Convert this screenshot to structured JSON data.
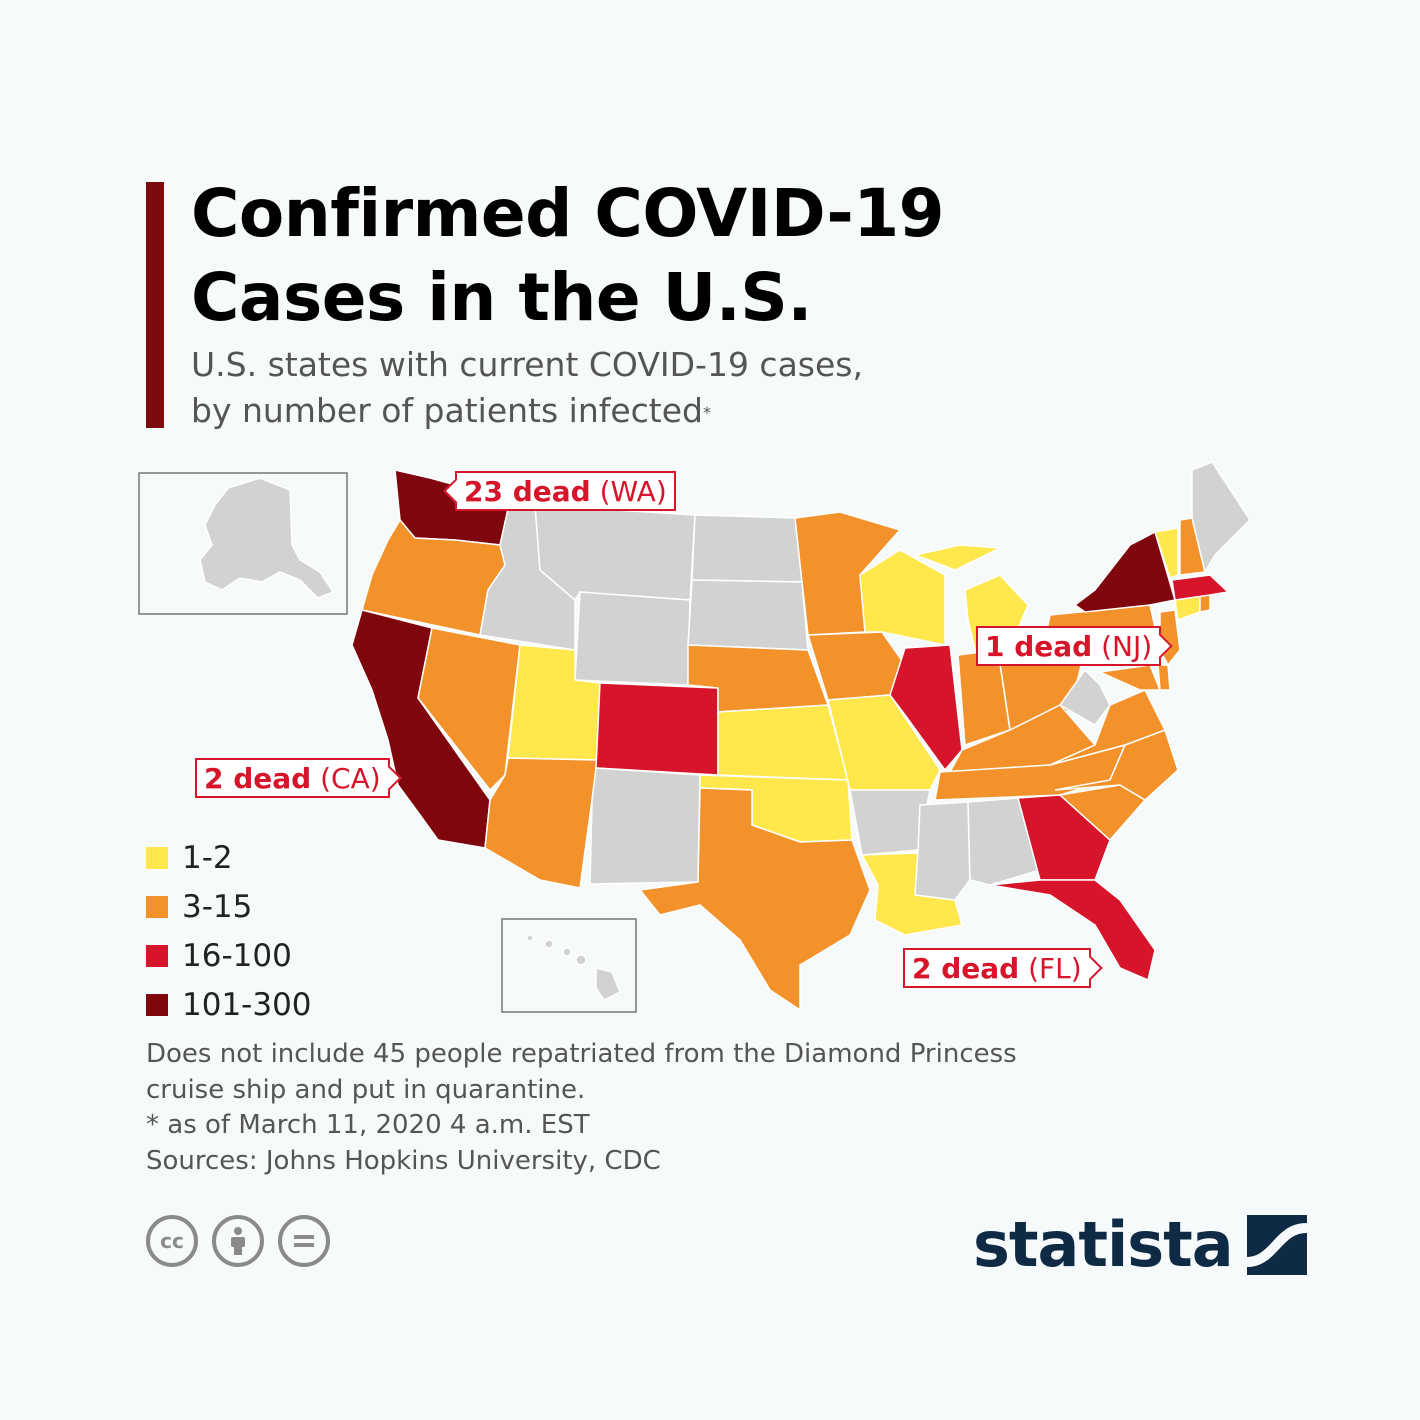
{
  "header": {
    "title_line1": "Confirmed COVID-19",
    "title_line2": "Cases in the U.S.",
    "subtitle_line1": "U.S. states with current COVID-19 cases,",
    "subtitle_line2": "by number of patients infected",
    "subtitle_marker": "*"
  },
  "legend": [
    {
      "label": "1-2",
      "color": "#ffe74c"
    },
    {
      "label": "3-15",
      "color": "#f3922b"
    },
    {
      "label": "16-100",
      "color": "#d7152a"
    },
    {
      "label": "101-300",
      "color": "#80060d"
    }
  ],
  "state_categories": {
    "WA": "101-300",
    "CA": "101-300",
    "NY": "101-300",
    "CO": "16-100",
    "IL": "16-100",
    "GA": "16-100",
    "FL": "16-100",
    "MA": "16-100",
    "OR": "3-15",
    "NV": "3-15",
    "AZ": "3-15",
    "TX": "3-15",
    "NE": "3-15",
    "MN": "3-15",
    "IA": "3-15",
    "IN": "3-15",
    "OH": "3-15",
    "KY": "3-15",
    "TN": "3-15",
    "NC": "3-15",
    "SC": "3-15",
    "VA": "3-15",
    "PA": "3-15",
    "NJ": "3-15",
    "MD": "3-15",
    "NH": "3-15",
    "RI": "3-15",
    "DE": "3-15",
    "UT": "1-2",
    "KS": "1-2",
    "OK": "1-2",
    "MO": "1-2",
    "LA": "1-2",
    "WI": "1-2",
    "MI": "1-2",
    "VT": "1-2",
    "CT": "1-2",
    "ID": "none",
    "MT": "none",
    "WY": "none",
    "ND": "none",
    "SD": "none",
    "NM": "none",
    "AR": "none",
    "MS": "none",
    "AL": "none",
    "WV": "none",
    "ME": "none",
    "AK": "none",
    "HI": "none"
  },
  "no_case_color": "#d3d2d2",
  "callouts": {
    "wa": {
      "bold": "23 dead",
      "state": "(WA)"
    },
    "nj": {
      "bold": "1 dead",
      "state": "(NJ)"
    },
    "ca": {
      "bold": "2 dead",
      "state": "(CA)"
    },
    "fl": {
      "bold": "2 dead",
      "state": "(FL)"
    }
  },
  "notes": {
    "line1": "Does not include 45 people repatriated from the Diamond Princess",
    "line2": "cruise ship and put in quarantine.",
    "line3": "* as of March 11, 2020 4 a.m. EST",
    "line4": "Sources: Johns Hopkins University, CDC"
  },
  "license_icons": [
    "cc-icon",
    "attribution-icon",
    "no-derivatives-icon"
  ],
  "logo": {
    "text": "statista",
    "brand_color": "#0f2a44"
  }
}
